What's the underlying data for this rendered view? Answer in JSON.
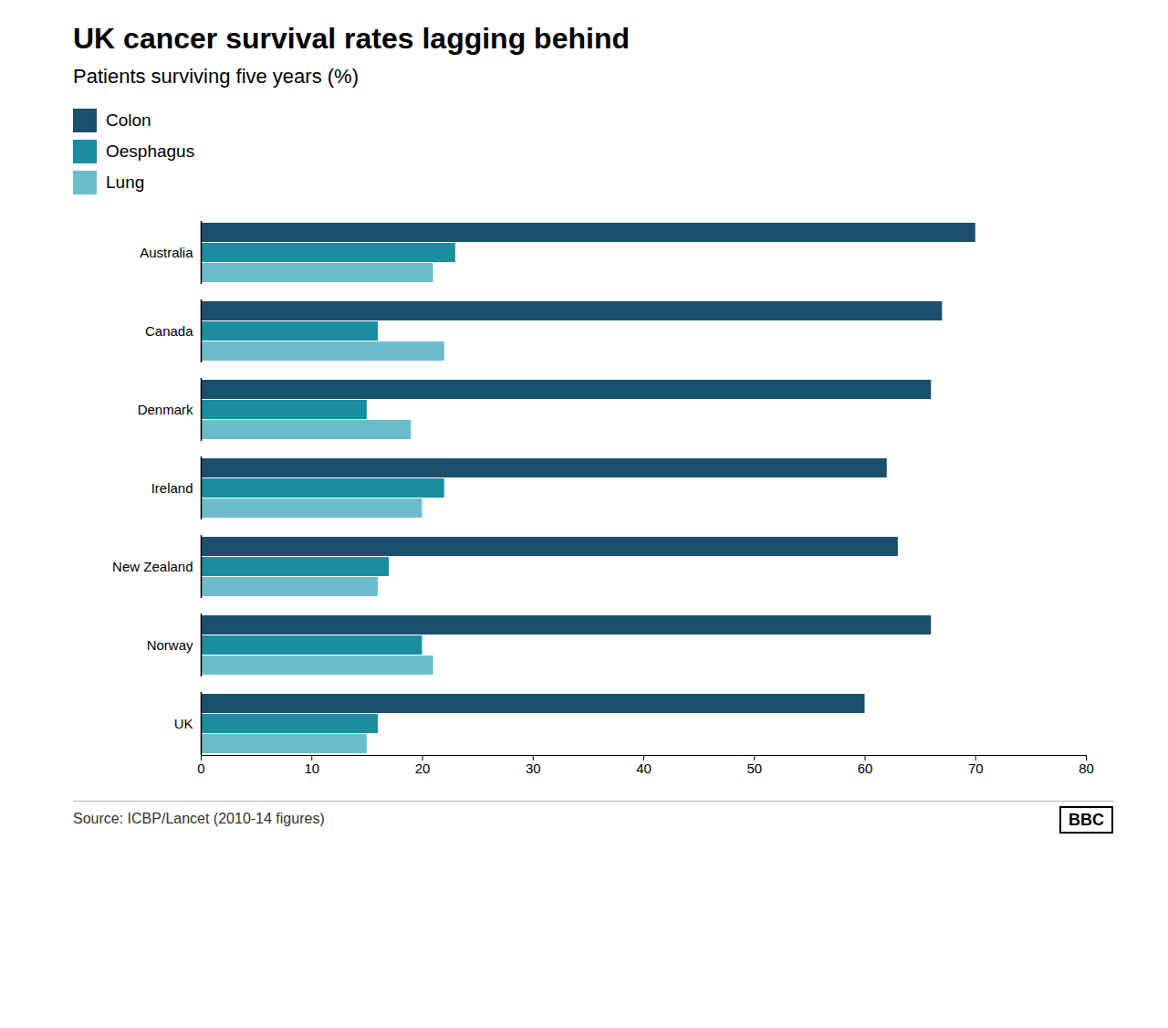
{
  "chart_data": {
    "type": "bar",
    "orientation": "horizontal",
    "title": "UK cancer survival rates lagging behind",
    "subtitle": "Patients surviving five years (%)",
    "source": "Source: ICBP/Lancet (2010-14 figures)",
    "annotations": [
      "BBC"
    ],
    "categories": [
      "Australia",
      "Canada",
      "Denmark",
      "Ireland",
      "New Zealand",
      "Norway",
      "UK"
    ],
    "series": [
      {
        "name": "Colon",
        "color": "#1b4f6e",
        "values": [
          70,
          67,
          66,
          62,
          63,
          66,
          60
        ]
      },
      {
        "name": "Oesphagus",
        "color": "#1a8ea0",
        "values": [
          23,
          16,
          15,
          22,
          17,
          20,
          16
        ]
      },
      {
        "name": "Lung",
        "color": "#6bbdce",
        "values": [
          21,
          22,
          19,
          20,
          16,
          21,
          15
        ]
      }
    ],
    "xlim": [
      0,
      80
    ],
    "xticks": [
      0,
      10,
      20,
      30,
      40,
      50,
      60,
      70,
      80
    ],
    "grid": false,
    "legend": "top"
  }
}
